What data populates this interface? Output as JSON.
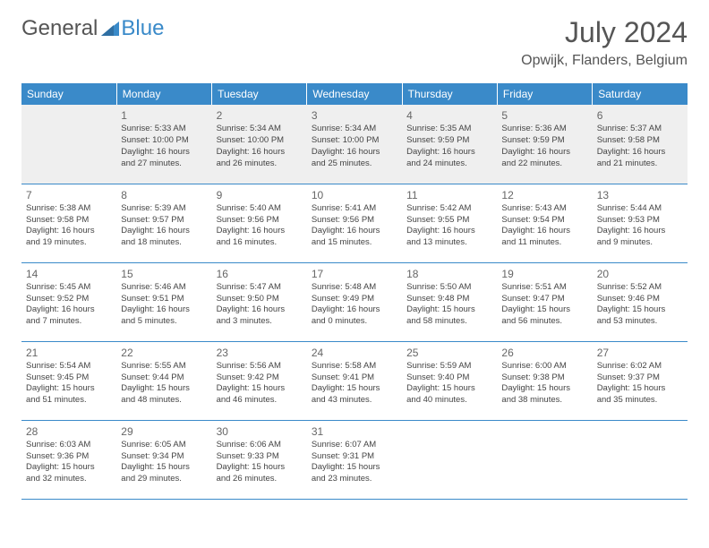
{
  "logo": {
    "text_general": "General",
    "text_blue": "Blue"
  },
  "header": {
    "month_title": "July 2024",
    "location": "Opwijk, Flanders, Belgium"
  },
  "colors": {
    "header_bg": "#3a8ac9",
    "header_text": "#ffffff",
    "first_row_bg": "#efefef",
    "row_divider": "#3a8ac9",
    "body_text": "#444444",
    "title_text": "#555555"
  },
  "weekdays": [
    "Sunday",
    "Monday",
    "Tuesday",
    "Wednesday",
    "Thursday",
    "Friday",
    "Saturday"
  ],
  "weeks": [
    [
      null,
      {
        "day": "1",
        "sunrise": "Sunrise: 5:33 AM",
        "sunset": "Sunset: 10:00 PM",
        "daylight1": "Daylight: 16 hours",
        "daylight2": "and 27 minutes."
      },
      {
        "day": "2",
        "sunrise": "Sunrise: 5:34 AM",
        "sunset": "Sunset: 10:00 PM",
        "daylight1": "Daylight: 16 hours",
        "daylight2": "and 26 minutes."
      },
      {
        "day": "3",
        "sunrise": "Sunrise: 5:34 AM",
        "sunset": "Sunset: 10:00 PM",
        "daylight1": "Daylight: 16 hours",
        "daylight2": "and 25 minutes."
      },
      {
        "day": "4",
        "sunrise": "Sunrise: 5:35 AM",
        "sunset": "Sunset: 9:59 PM",
        "daylight1": "Daylight: 16 hours",
        "daylight2": "and 24 minutes."
      },
      {
        "day": "5",
        "sunrise": "Sunrise: 5:36 AM",
        "sunset": "Sunset: 9:59 PM",
        "daylight1": "Daylight: 16 hours",
        "daylight2": "and 22 minutes."
      },
      {
        "day": "6",
        "sunrise": "Sunrise: 5:37 AM",
        "sunset": "Sunset: 9:58 PM",
        "daylight1": "Daylight: 16 hours",
        "daylight2": "and 21 minutes."
      }
    ],
    [
      {
        "day": "7",
        "sunrise": "Sunrise: 5:38 AM",
        "sunset": "Sunset: 9:58 PM",
        "daylight1": "Daylight: 16 hours",
        "daylight2": "and 19 minutes."
      },
      {
        "day": "8",
        "sunrise": "Sunrise: 5:39 AM",
        "sunset": "Sunset: 9:57 PM",
        "daylight1": "Daylight: 16 hours",
        "daylight2": "and 18 minutes."
      },
      {
        "day": "9",
        "sunrise": "Sunrise: 5:40 AM",
        "sunset": "Sunset: 9:56 PM",
        "daylight1": "Daylight: 16 hours",
        "daylight2": "and 16 minutes."
      },
      {
        "day": "10",
        "sunrise": "Sunrise: 5:41 AM",
        "sunset": "Sunset: 9:56 PM",
        "daylight1": "Daylight: 16 hours",
        "daylight2": "and 15 minutes."
      },
      {
        "day": "11",
        "sunrise": "Sunrise: 5:42 AM",
        "sunset": "Sunset: 9:55 PM",
        "daylight1": "Daylight: 16 hours",
        "daylight2": "and 13 minutes."
      },
      {
        "day": "12",
        "sunrise": "Sunrise: 5:43 AM",
        "sunset": "Sunset: 9:54 PM",
        "daylight1": "Daylight: 16 hours",
        "daylight2": "and 11 minutes."
      },
      {
        "day": "13",
        "sunrise": "Sunrise: 5:44 AM",
        "sunset": "Sunset: 9:53 PM",
        "daylight1": "Daylight: 16 hours",
        "daylight2": "and 9 minutes."
      }
    ],
    [
      {
        "day": "14",
        "sunrise": "Sunrise: 5:45 AM",
        "sunset": "Sunset: 9:52 PM",
        "daylight1": "Daylight: 16 hours",
        "daylight2": "and 7 minutes."
      },
      {
        "day": "15",
        "sunrise": "Sunrise: 5:46 AM",
        "sunset": "Sunset: 9:51 PM",
        "daylight1": "Daylight: 16 hours",
        "daylight2": "and 5 minutes."
      },
      {
        "day": "16",
        "sunrise": "Sunrise: 5:47 AM",
        "sunset": "Sunset: 9:50 PM",
        "daylight1": "Daylight: 16 hours",
        "daylight2": "and 3 minutes."
      },
      {
        "day": "17",
        "sunrise": "Sunrise: 5:48 AM",
        "sunset": "Sunset: 9:49 PM",
        "daylight1": "Daylight: 16 hours",
        "daylight2": "and 0 minutes."
      },
      {
        "day": "18",
        "sunrise": "Sunrise: 5:50 AM",
        "sunset": "Sunset: 9:48 PM",
        "daylight1": "Daylight: 15 hours",
        "daylight2": "and 58 minutes."
      },
      {
        "day": "19",
        "sunrise": "Sunrise: 5:51 AM",
        "sunset": "Sunset: 9:47 PM",
        "daylight1": "Daylight: 15 hours",
        "daylight2": "and 56 minutes."
      },
      {
        "day": "20",
        "sunrise": "Sunrise: 5:52 AM",
        "sunset": "Sunset: 9:46 PM",
        "daylight1": "Daylight: 15 hours",
        "daylight2": "and 53 minutes."
      }
    ],
    [
      {
        "day": "21",
        "sunrise": "Sunrise: 5:54 AM",
        "sunset": "Sunset: 9:45 PM",
        "daylight1": "Daylight: 15 hours",
        "daylight2": "and 51 minutes."
      },
      {
        "day": "22",
        "sunrise": "Sunrise: 5:55 AM",
        "sunset": "Sunset: 9:44 PM",
        "daylight1": "Daylight: 15 hours",
        "daylight2": "and 48 minutes."
      },
      {
        "day": "23",
        "sunrise": "Sunrise: 5:56 AM",
        "sunset": "Sunset: 9:42 PM",
        "daylight1": "Daylight: 15 hours",
        "daylight2": "and 46 minutes."
      },
      {
        "day": "24",
        "sunrise": "Sunrise: 5:58 AM",
        "sunset": "Sunset: 9:41 PM",
        "daylight1": "Daylight: 15 hours",
        "daylight2": "and 43 minutes."
      },
      {
        "day": "25",
        "sunrise": "Sunrise: 5:59 AM",
        "sunset": "Sunset: 9:40 PM",
        "daylight1": "Daylight: 15 hours",
        "daylight2": "and 40 minutes."
      },
      {
        "day": "26",
        "sunrise": "Sunrise: 6:00 AM",
        "sunset": "Sunset: 9:38 PM",
        "daylight1": "Daylight: 15 hours",
        "daylight2": "and 38 minutes."
      },
      {
        "day": "27",
        "sunrise": "Sunrise: 6:02 AM",
        "sunset": "Sunset: 9:37 PM",
        "daylight1": "Daylight: 15 hours",
        "daylight2": "and 35 minutes."
      }
    ],
    [
      {
        "day": "28",
        "sunrise": "Sunrise: 6:03 AM",
        "sunset": "Sunset: 9:36 PM",
        "daylight1": "Daylight: 15 hours",
        "daylight2": "and 32 minutes."
      },
      {
        "day": "29",
        "sunrise": "Sunrise: 6:05 AM",
        "sunset": "Sunset: 9:34 PM",
        "daylight1": "Daylight: 15 hours",
        "daylight2": "and 29 minutes."
      },
      {
        "day": "30",
        "sunrise": "Sunrise: 6:06 AM",
        "sunset": "Sunset: 9:33 PM",
        "daylight1": "Daylight: 15 hours",
        "daylight2": "and 26 minutes."
      },
      {
        "day": "31",
        "sunrise": "Sunrise: 6:07 AM",
        "sunset": "Sunset: 9:31 PM",
        "daylight1": "Daylight: 15 hours",
        "daylight2": "and 23 minutes."
      },
      null,
      null,
      null
    ]
  ]
}
